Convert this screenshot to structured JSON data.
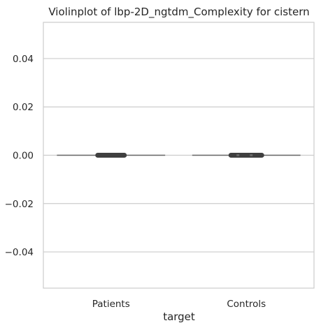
{
  "chart_data": {
    "type": "violin",
    "title": "Violinplot of lbp-2D_ngtdm_Complexity for cistern",
    "xlabel": "target",
    "ylabel": "",
    "categories": [
      "Patients",
      "Controls"
    ],
    "ylim": [
      -0.055,
      0.055
    ],
    "yticks": [
      0.04,
      0.02,
      0.0,
      -0.02,
      -0.04
    ],
    "ytick_labels": [
      "0.04",
      "0.02",
      "0.00",
      "−0.02",
      "−0.04"
    ],
    "grid": true,
    "series": [
      {
        "category": "Patients",
        "values": [
          0.0
        ]
      },
      {
        "category": "Controls",
        "values": [
          0.0
        ]
      }
    ],
    "colors": {
      "frame": "#cccccc",
      "grid": "#cccccc",
      "marks": "#3f3f3f"
    }
  }
}
